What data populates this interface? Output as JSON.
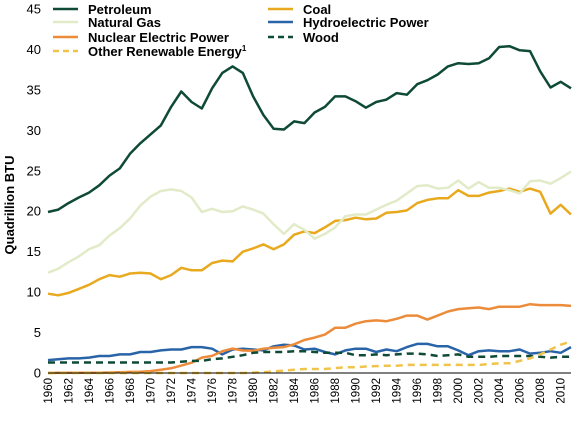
{
  "chart_data": {
    "type": "line",
    "title": "",
    "xlabel": "",
    "ylabel": "Quadrillion BTU",
    "ylim": [
      0,
      45
    ],
    "yticks": [
      0,
      5,
      10,
      15,
      20,
      25,
      30,
      35,
      40,
      45
    ],
    "xlim": [
      1960,
      2011
    ],
    "xticks": [
      1960,
      1962,
      1964,
      1966,
      1968,
      1970,
      1972,
      1974,
      1976,
      1978,
      1980,
      1982,
      1984,
      1986,
      1988,
      1990,
      1992,
      1994,
      1996,
      1998,
      2000,
      2002,
      2004,
      2006,
      2008,
      2010
    ],
    "grid": false,
    "legend_position": "top",
    "x": [
      1960,
      1961,
      1962,
      1963,
      1964,
      1965,
      1966,
      1967,
      1968,
      1969,
      1970,
      1971,
      1972,
      1973,
      1974,
      1975,
      1976,
      1977,
      1978,
      1979,
      1980,
      1981,
      1982,
      1983,
      1984,
      1985,
      1986,
      1987,
      1988,
      1989,
      1990,
      1991,
      1992,
      1993,
      1994,
      1995,
      1996,
      1997,
      1998,
      1999,
      2000,
      2001,
      2002,
      2003,
      2004,
      2005,
      2006,
      2007,
      2008,
      2009,
      2010,
      2011
    ],
    "series": [
      {
        "name": "Petroleum",
        "color": "#0f4a36",
        "dash": "solid",
        "values": [
          19.9,
          20.2,
          21.0,
          21.7,
          22.3,
          23.2,
          24.4,
          25.3,
          27.1,
          28.4,
          29.5,
          30.6,
          32.9,
          34.8,
          33.5,
          32.7,
          35.2,
          37.1,
          37.9,
          37.1,
          34.2,
          31.9,
          30.2,
          30.1,
          31.1,
          30.9,
          32.2,
          32.9,
          34.2,
          34.2,
          33.6,
          32.8,
          33.5,
          33.8,
          34.6,
          34.4,
          35.7,
          36.2,
          36.9,
          37.9,
          38.3,
          38.2,
          38.3,
          38.9,
          40.3,
          40.4,
          39.9,
          39.8,
          37.3,
          35.3,
          36.0,
          35.2
        ]
      },
      {
        "name": "Coal",
        "color": "#e8a91e",
        "dash": "solid",
        "values": [
          9.8,
          9.6,
          9.9,
          10.4,
          10.9,
          11.6,
          12.1,
          11.9,
          12.3,
          12.4,
          12.3,
          11.6,
          12.1,
          13.0,
          12.7,
          12.7,
          13.6,
          13.9,
          13.8,
          15.0,
          15.4,
          15.9,
          15.3,
          15.9,
          17.1,
          17.5,
          17.3,
          18.0,
          18.8,
          18.9,
          19.2,
          19.0,
          19.1,
          19.8,
          19.9,
          20.1,
          21.0,
          21.4,
          21.6,
          21.6,
          22.6,
          21.9,
          21.9,
          22.3,
          22.5,
          22.8,
          22.4,
          22.8,
          22.4,
          19.7,
          20.8,
          19.6
        ]
      },
      {
        "name": "Natural Gas",
        "color": "#e2ebc8",
        "dash": "solid",
        "values": [
          12.4,
          12.9,
          13.7,
          14.4,
          15.3,
          15.8,
          17.0,
          17.9,
          19.1,
          20.7,
          21.8,
          22.5,
          22.7,
          22.5,
          21.7,
          19.9,
          20.3,
          19.9,
          20.0,
          20.6,
          20.2,
          19.7,
          18.4,
          17.2,
          18.4,
          17.7,
          16.6,
          17.2,
          18.0,
          19.4,
          19.6,
          19.6,
          20.2,
          20.8,
          21.3,
          22.2,
          23.1,
          23.2,
          22.8,
          22.9,
          23.8,
          22.8,
          23.6,
          22.9,
          22.9,
          22.6,
          22.2,
          23.7,
          23.8,
          23.4,
          24.1,
          24.9
        ]
      },
      {
        "name": "Hydroelectric Power",
        "color": "#2a64a8",
        "dash": "solid",
        "values": [
          1.6,
          1.7,
          1.8,
          1.8,
          1.9,
          2.1,
          2.1,
          2.3,
          2.3,
          2.6,
          2.6,
          2.8,
          2.9,
          2.9,
          3.2,
          3.2,
          3.0,
          2.3,
          2.9,
          3.0,
          2.9,
          2.8,
          3.3,
          3.5,
          3.4,
          2.9,
          3.0,
          2.6,
          2.3,
          2.8,
          3.0,
          3.0,
          2.6,
          2.9,
          2.7,
          3.2,
          3.6,
          3.6,
          3.3,
          3.3,
          2.8,
          2.2,
          2.7,
          2.8,
          2.7,
          2.7,
          2.9,
          2.4,
          2.5,
          2.7,
          2.5,
          3.2
        ]
      },
      {
        "name": "Nuclear Electric Power",
        "color": "#ec8c3a",
        "dash": "solid",
        "values": [
          0.0,
          0.02,
          0.03,
          0.04,
          0.04,
          0.04,
          0.06,
          0.09,
          0.13,
          0.15,
          0.24,
          0.41,
          0.58,
          0.91,
          1.27,
          1.9,
          2.11,
          2.7,
          3.02,
          2.78,
          2.74,
          3.01,
          3.13,
          3.2,
          3.55,
          4.08,
          4.38,
          4.75,
          5.59,
          5.6,
          6.1,
          6.4,
          6.5,
          6.4,
          6.7,
          7.1,
          7.1,
          6.6,
          7.1,
          7.6,
          7.9,
          8.0,
          8.1,
          7.9,
          8.2,
          8.2,
          8.2,
          8.5,
          8.4,
          8.4,
          8.4,
          8.3
        ]
      },
      {
        "name": "Wood",
        "color": "#0f4a36",
        "dash": "dashed",
        "values": [
          1.3,
          1.3,
          1.3,
          1.3,
          1.3,
          1.3,
          1.3,
          1.3,
          1.3,
          1.3,
          1.3,
          1.3,
          1.3,
          1.4,
          1.5,
          1.5,
          1.7,
          1.8,
          2.0,
          2.2,
          2.5,
          2.6,
          2.6,
          2.6,
          2.7,
          2.7,
          2.6,
          2.5,
          2.5,
          2.5,
          2.2,
          2.2,
          2.3,
          2.2,
          2.3,
          2.4,
          2.4,
          2.3,
          2.1,
          2.2,
          2.3,
          2.0,
          2.0,
          2.0,
          2.1,
          2.1,
          2.1,
          2.1,
          2.0,
          1.9,
          2.0,
          2.0
        ]
      },
      {
        "name": "Other Renewable Energy",
        "name_suffix": "1",
        "color": "#f0c44c",
        "dash": "dashed",
        "values": [
          0.0,
          0.0,
          0.0,
          0.0,
          0.0,
          0.0,
          0.0,
          0.0,
          0.0,
          0.0,
          0.0,
          0.0,
          0.0,
          0.0,
          0.0,
          0.0,
          0.0,
          0.0,
          0.0,
          0.0,
          0.05,
          0.1,
          0.2,
          0.3,
          0.4,
          0.5,
          0.5,
          0.5,
          0.6,
          0.7,
          0.7,
          0.8,
          0.85,
          0.9,
          0.9,
          1.0,
          1.0,
          1.0,
          1.0,
          1.0,
          1.0,
          1.0,
          1.0,
          1.1,
          1.2,
          1.2,
          1.5,
          1.8,
          2.3,
          2.9,
          3.5,
          3.9
        ]
      }
    ]
  }
}
